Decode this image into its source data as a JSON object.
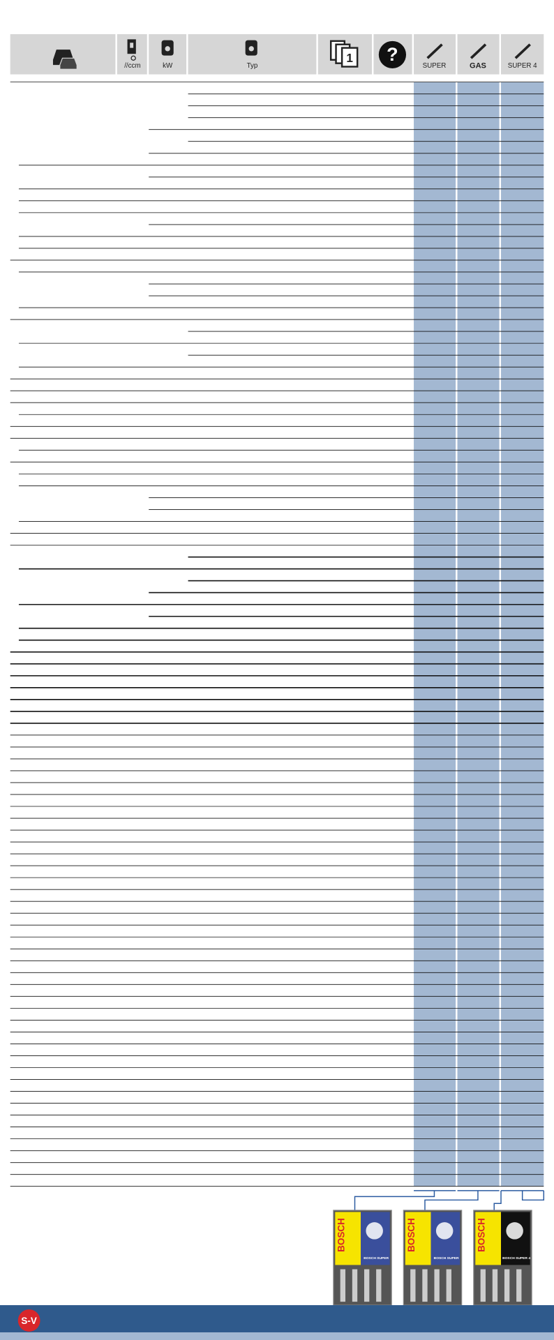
{
  "header": {
    "columns": [
      "//ccm",
      "kW",
      "Typ",
      "SUPER",
      "GAS",
      "SUPER 4"
    ]
  },
  "packages": [
    {
      "brand": "BOSCH",
      "label": "BOSCH SUPER"
    },
    {
      "brand": "BOSCH",
      "label": "BOSCH SUPER"
    },
    {
      "brand": "BOSCH",
      "label": "BOSCH SUPER 4"
    }
  ],
  "footer": {
    "badge": "S-V"
  }
}
